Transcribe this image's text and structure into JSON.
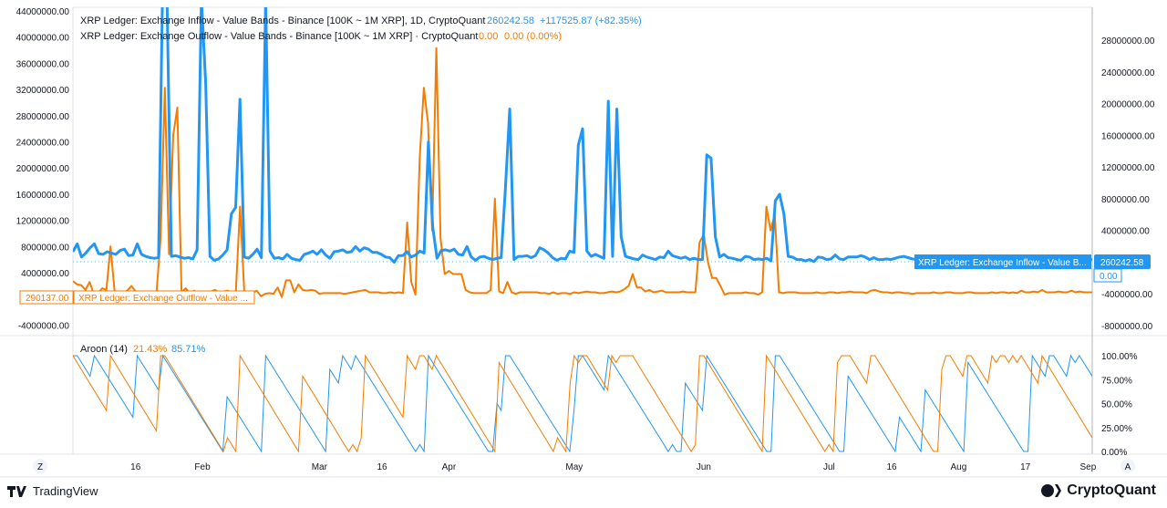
{
  "legend": {
    "inflow": {
      "label": "XRP Ledger: Exchange Inflow - Value Bands - Binance [100K ~ 1M XRP], 1D, CryptoQuant",
      "value": "260242.58",
      "change": "+117525.87 (+82.35%)"
    },
    "outflow": {
      "label": "XRP Ledger: Exchange Outflow - Value Bands - Binance [100K ~ 1M XRP] · CryptoQuant",
      "value": "0.00",
      "change": "0.00 (0.00%)"
    },
    "aroon": {
      "label": "Aroon (14)",
      "up": "21.43%",
      "down": "85.71%"
    }
  },
  "badges": {
    "inflow_tag": "XRP Ledger: Exchange Inflow - Value B...",
    "inflow_value": "260242.58",
    "outflow_right_value": "0.00",
    "outflow_left_value": "290137.00",
    "outflow_tag": "XRP Ledger: Exchange Outflow - Value ..."
  },
  "axes": {
    "left_ticks": [
      "44000000.00",
      "40000000.00",
      "36000000.00",
      "32000000.00",
      "28000000.00",
      "24000000.00",
      "20000000.00",
      "16000000.00",
      "12000000.00",
      "8000000.00",
      "4000000.00",
      "-4000000.00"
    ],
    "right_ticks": [
      "28000000.00",
      "24000000.00",
      "20000000.00",
      "16000000.00",
      "12000000.00",
      "8000000.00",
      "4000000.00",
      "-4000000.00",
      "-8000000.00"
    ],
    "aroon_ticks": [
      "100.00%",
      "75.00%",
      "50.00%",
      "25.00%",
      "0.00%"
    ],
    "time_labels": [
      "16",
      "Feb",
      "Mar",
      "16",
      "Apr",
      "May",
      "Jun",
      "Jul",
      "16",
      "Aug",
      "17",
      "Sep"
    ],
    "corner_left": "Z",
    "corner_right": "A"
  },
  "footer": {
    "left_brand": "TradingView",
    "right_brand": "CryptoQuant"
  },
  "colors": {
    "inflow": "#2196f3",
    "outflow": "#f57c00",
    "text": "#131722",
    "axis_text": "#131722",
    "grid": "#e0e3eb"
  },
  "chart_data": [
    {
      "type": "line",
      "title": "",
      "xlabel": "",
      "ylabel": "",
      "x_start": "2023-01-01",
      "x_end": "2023-09-02",
      "ylim_left": [
        -6000000,
        44000000
      ],
      "ylim_right": [
        -10000000,
        31000000
      ],
      "grid": true,
      "series": [
        {
          "name": "XRP Ledger: Exchange Inflow - Value Bands - Binance [100K ~ 1M XRP]",
          "axis": "left",
          "values": [
            7200000,
            8400000,
            6400000,
            7000000,
            7800000,
            8400000,
            6900000,
            6800000,
            7200000,
            7000000,
            6800000,
            7400000,
            7600000,
            6600000,
            6700000,
            8400000,
            6800000,
            6500000,
            6300000,
            6200000,
            6300000,
            50000000,
            45000000,
            6500000,
            6600000,
            6400000,
            6200000,
            6300000,
            6100000,
            7500000,
            46000000,
            33000000,
            6500000,
            5900000,
            6100000,
            6700000,
            7500000,
            13000000,
            14000000,
            30500000,
            6400000,
            6200000,
            6800000,
            7600000,
            6300000,
            46000000,
            7300000,
            6200000,
            6300000,
            6100000,
            6800000,
            6200000,
            6000000,
            5900000,
            6800000,
            7000000,
            7300000,
            6800000,
            7500000,
            6700000,
            6200000,
            7200000,
            7300000,
            7500000,
            7100000,
            7200000,
            8000000,
            7300000,
            7800000,
            7600000,
            7100000,
            7100000,
            6800000,
            6400000,
            6300000,
            5600000,
            6600000,
            6600000,
            7200000,
            6400000,
            6700000,
            7300000,
            7000000,
            24000000,
            11000000,
            6200000,
            7400000,
            7500000,
            7300000,
            7600000,
            6800000,
            6700000,
            8000000,
            6400000,
            5900000,
            6400000,
            6500000,
            6200000,
            6000000,
            6200000,
            6300000,
            17000000,
            29000000,
            6000000,
            6500000,
            6500000,
            6600000,
            6300000,
            6600000,
            7800000,
            7500000,
            7000000,
            6300000,
            5900000,
            6200000,
            6100000,
            7300000,
            7100000,
            23500000,
            26000000,
            7300000,
            6500000,
            6800000,
            6500000,
            6200000,
            30200000,
            6500000,
            29000000,
            9500000,
            6500000,
            6300000,
            6100000,
            6000000,
            6700000,
            6400000,
            6200000,
            6000000,
            6400000,
            6300000,
            7300000,
            6600000,
            6400000,
            6200000,
            6400000,
            6000000,
            6200000,
            6000000,
            6000000,
            22000000,
            21500000,
            9500000,
            6400000,
            6800000,
            6300000,
            6200000,
            6000000,
            5900000,
            6500000,
            6400000,
            6000000,
            6100000,
            6000000,
            6200000,
            5800000,
            15000000,
            16000000,
            13000000,
            6500000,
            6400000,
            6000000,
            6000000,
            5800000,
            6000000,
            5700000,
            6400000,
            6300000,
            6000000,
            6100000,
            6700000,
            6100000,
            6000000,
            6400000,
            6400000,
            6400000,
            6600000,
            6400000,
            6000000,
            6300000,
            6000000,
            6000000,
            6100000,
            6000000,
            6200000,
            6400000,
            6500000,
            6300000,
            6100000,
            6000000,
            6100000,
            6000000,
            6000000,
            5800000,
            6000000,
            6200000,
            6000000,
            5800000,
            5900000,
            6400000,
            6400000,
            6300000,
            6200000,
            6000000,
            6000000,
            6000000,
            6000000,
            6000000,
            6000000,
            6100000,
            6000000,
            6000000,
            6000000,
            6000000,
            6000000,
            6000000,
            6200000,
            6000000,
            6000000,
            6000000,
            6200000,
            6300000,
            6200000,
            6000000,
            6000000,
            6300000,
            6200000,
            6300000,
            6100000,
            6000000,
            6000000
          ]
        },
        {
          "name": "XRP Ledger: Exchange Outflow - Value Bands - Binance [100K ~ 1M XRP]",
          "axis": "right",
          "values": [
            -2400000,
            -2800000,
            -2900000,
            -3500000,
            -2500000,
            -4000000,
            -3900000,
            -3300000,
            -3500000,
            2000000,
            -3800000,
            -3800000,
            -3800000,
            -3600000,
            -3000000,
            -3700000,
            -4500000,
            -3900000,
            -3900000,
            -3800000,
            -3900000,
            3000000,
            22000000,
            1000000,
            16000000,
            19500000,
            -3800000,
            -3300000,
            -3900000,
            -3600000,
            -3900000,
            -3800000,
            -3700000,
            -3700000,
            -3500000,
            -3800000,
            -3700000,
            -3600000,
            -3800000,
            -3700000,
            7000000,
            -3700000,
            -3700000,
            -3900000,
            -3600000,
            -4300000,
            -4000000,
            -3900000,
            -4000000,
            -3200000,
            -4400000,
            -2300000,
            -2300000,
            -3800000,
            -2800000,
            -3500000,
            -3600000,
            -3500000,
            -3600000,
            -4000000,
            -3900000,
            -3900000,
            -3900000,
            -3900000,
            -3900000,
            -4000000,
            -3900000,
            -3800000,
            -3700000,
            -3600000,
            -3500000,
            -3800000,
            -3800000,
            -3800000,
            -3900000,
            -3900000,
            -3800000,
            -3900000,
            -3800000,
            -3900000,
            5000000,
            -2500000,
            -4100000,
            13000000,
            22000000,
            17500000,
            4000000,
            27000000,
            3000000,
            -1500000,
            -1100000,
            -1500000,
            -1500000,
            -1500000,
            -3500000,
            -3800000,
            -3900000,
            -3900000,
            -3900000,
            -3900000,
            -3500000,
            8000000,
            -3700000,
            -3900000,
            -2500000,
            -3800000,
            -4000000,
            -3800000,
            -3800000,
            -3800000,
            -3800000,
            -3800000,
            -3900000,
            -3900000,
            -4000000,
            -3800000,
            -4000000,
            -3900000,
            -3900000,
            -4000000,
            -3800000,
            -3900000,
            -3800000,
            -3700000,
            -3800000,
            -3800000,
            -3900000,
            -3900000,
            -3800000,
            -3700000,
            -3800000,
            -3700000,
            -3400000,
            -3000000,
            -1500000,
            -3200000,
            -3200000,
            -3700000,
            -3500000,
            -3800000,
            -3700000,
            -3600000,
            -3800000,
            -3800000,
            -3800000,
            -3800000,
            -3700000,
            -3800000,
            -3800000,
            -3800000,
            2500000,
            3500000,
            0,
            -2000000,
            -2000000,
            -3000000,
            -4100000,
            -3900000,
            -3900000,
            -3900000,
            -3900000,
            -3800000,
            -3900000,
            -3900000,
            -4100000,
            -3800000,
            7000000,
            4000000,
            6000000,
            -3800000,
            -3900000,
            -3800000,
            -3800000,
            -3800000,
            -3900000,
            -3900000,
            -3900000,
            -3900000,
            -3800000,
            -3900000,
            -3900000,
            -3800000,
            -3800000,
            -3900000,
            -3800000,
            -3800000,
            -3700000,
            -3800000,
            -3800000,
            -3800000,
            -3900000,
            -3600000,
            -3500000,
            -3700000,
            -3800000,
            -3800000,
            -3900000,
            -3800000,
            -3800000,
            -3900000,
            -3900000,
            -4000000,
            -3900000,
            -3900000,
            -3900000,
            -3900000,
            -3800000,
            -3900000,
            -3900000,
            -3800000,
            -3800000,
            -3900000,
            -3900000,
            -3900000,
            -3800000,
            -3800000,
            -3900000,
            -3900000,
            -3900000,
            -3900000,
            -3800000,
            -3900000,
            -3800000,
            -3800000,
            -3900000,
            -3800000,
            -3900000,
            -3600000,
            -3800000,
            -3800000,
            -3700000,
            -3800000,
            -3500000,
            -3800000,
            -3800000,
            -3800000,
            -3700000,
            -3800000,
            -3800000,
            -3600000,
            -3800000,
            -3700000,
            -3800000,
            -3800000,
            -3800000
          ]
        }
      ]
    },
    {
      "type": "line",
      "title": "Aroon (14)",
      "xlabel": "",
      "ylabel": "",
      "ylim": [
        0,
        100
      ],
      "grid": true,
      "series": [
        {
          "name": "Aroon Up",
          "color": "#f57c00",
          "values_note": "sawtooth"
        },
        {
          "name": "Aroon Down",
          "color": "#2196f3",
          "values_note": "sawtooth"
        }
      ]
    }
  ]
}
